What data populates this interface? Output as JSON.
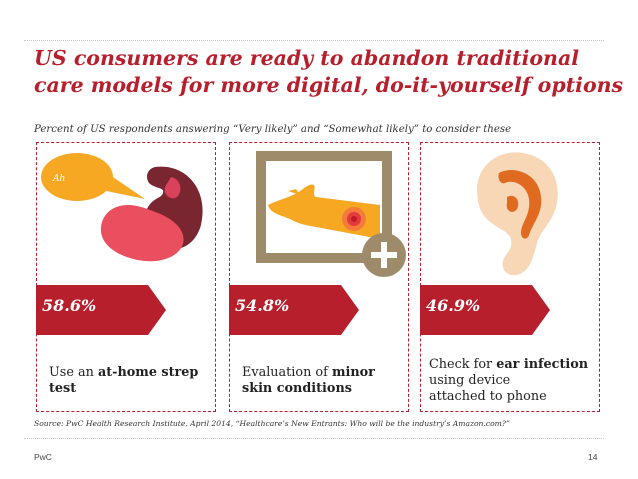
{
  "title": {
    "line1": "US consumers are ready to abandon traditional",
    "line2": "care models for more digital, do-it-yourself options"
  },
  "subtitle": "Percent of US respondents answering “Very likely” and “Somewhat likely” to consider these",
  "cards": [
    {
      "percent": "58.6%",
      "value": 58.6,
      "desc_plain": "Use an ",
      "desc_bold": "at-home strep test",
      "desc_rest": "",
      "bubble_text": "Ah",
      "icon": "open-mouth-tongue-icon"
    },
    {
      "percent": "54.8%",
      "value": 54.8,
      "desc_plain": "Evaluation of ",
      "desc_bold": "minor skin conditions",
      "desc_rest": "",
      "icon": "arm-skin-rash-photo-icon"
    },
    {
      "percent": "46.9%",
      "value": 46.9,
      "desc_plain": "Check for ",
      "desc_bold": "ear infection",
      "desc_rest": "using device attached to phone",
      "icon": "ear-icon"
    }
  ],
  "source": "Source: PwC Health Research Institute, April 2014, “Healthcare’s New Entrants: Who will be the industry’s Amazon.com?”",
  "footer": {
    "brand": "PwC",
    "page": "14"
  },
  "colors": {
    "accent": "#b61f2b",
    "orange": "#f7a823",
    "frame": "#9e8b6a",
    "tongue": "#e94f5e",
    "mouth": "#7a2630",
    "ear": "#e06a1f"
  }
}
